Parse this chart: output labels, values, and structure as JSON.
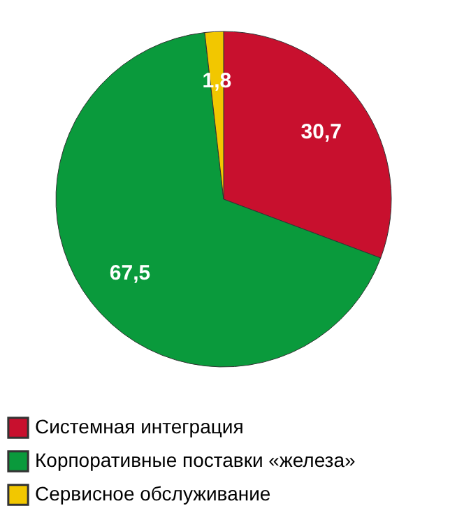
{
  "chart_data": {
    "type": "pie",
    "categories": [
      "Системная интеграция",
      "Корпоративные поставки «железа»",
      "Сервисное обслуживание"
    ],
    "values": [
      30.7,
      67.5,
      1.8
    ],
    "value_labels": [
      "30,7",
      "67,5",
      "1,8"
    ],
    "colors": [
      "#c8102e",
      "#0a9a3c",
      "#f2c700"
    ],
    "legend": "bottom"
  }
}
